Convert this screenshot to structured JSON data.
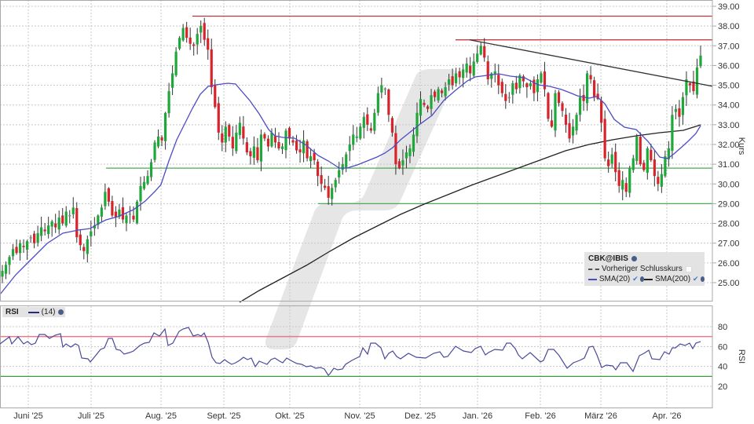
{
  "chart_data": {
    "type": "candlestick",
    "title": "CBK@IBIS",
    "instrument": "CBK@IBIS",
    "ylabel": "Kurs",
    "ylim": [
      24.3,
      39.3
    ],
    "y_ticks": [
      "39.00",
      "38.00",
      "37.00",
      "36.00",
      "35.00",
      "34.00",
      "33.00",
      "32.00",
      "31.00",
      "30.00",
      "29.00",
      "28.00",
      "27.00",
      "26.00",
      "25.00"
    ],
    "x_ticks": [
      "Juni '25",
      "Juli '25",
      "Aug. '25",
      "Sept. '25",
      "Okt. '25",
      "Nov. '25",
      "Dez. '25",
      "Jan. '26",
      "Feb. '26",
      "März '26",
      "Apr. '26"
    ],
    "x_tick_pos": [
      36,
      116,
      205,
      285,
      369,
      458,
      535,
      608,
      688,
      765,
      849
    ],
    "grid": true,
    "legend": {
      "title": "CBK@IBIS",
      "items": [
        {
          "label": "Vorheriger Schlusskurs",
          "style": "dashed",
          "color": "#555555"
        },
        {
          "label": "SMA(20)",
          "style": "solid",
          "color": "#4c4cc4"
        },
        {
          "label": "SMA(200)",
          "style": "solid",
          "color": "#222222"
        }
      ],
      "position": "lower-right"
    },
    "horizontal_lines": [
      {
        "value": 38.5,
        "x_start": 245,
        "color": "#c0262d"
      },
      {
        "value": 37.3,
        "x_start": 580,
        "color": "#c0262d"
      },
      {
        "value": 30.8,
        "x_start": 135,
        "color": "#4daa57"
      },
      {
        "value": 29.0,
        "x_start": 405,
        "color": "#4daa57"
      }
    ],
    "trendline": {
      "x1": 598,
      "y1v": 37.3,
      "x2": 907,
      "y2v": 34.95,
      "color": "#333333"
    },
    "closes": [
      25.6,
      25.9,
      26.3,
      26.7,
      26.5,
      27.0,
      26.8,
      27.1,
      27.3,
      27.0,
      27.5,
      27.8,
      27.6,
      27.9,
      28.1,
      27.8,
      28.3,
      28.0,
      28.6,
      28.4,
      28.8,
      27.3,
      26.9,
      26.6,
      27.2,
      27.6,
      27.9,
      28.4,
      28.8,
      29.6,
      29.1,
      28.4,
      28.3,
      28.7,
      28.2,
      28.4,
      28.5,
      28.2,
      29.1,
      29.9,
      30.1,
      30.4,
      31.1,
      32.1,
      32.4,
      32.2,
      33.6,
      34.7,
      35.6,
      36.7,
      37.4,
      37.9,
      37.4,
      37.1,
      37.0,
      37.6,
      38.0,
      37.3,
      36.8,
      34.9,
      33.9,
      32.6,
      32.1,
      32.9,
      32.4,
      31.8,
      32.6,
      33.1,
      32.3,
      31.6,
      31.4,
      31.9,
      31.2,
      32.5,
      32.3,
      31.9,
      32.6,
      32.1,
      31.8,
      31.9,
      32.7,
      32.3,
      32.1,
      31.7,
      31.6,
      32.2,
      31.3,
      31.4,
      31.2,
      30.4,
      30.0,
      29.8,
      29.3,
      29.8,
      30.2,
      30.7,
      31.0,
      31.5,
      32.0,
      32.5,
      32.4,
      32.9,
      33.4,
      33.0,
      32.7,
      33.6,
      34.6,
      35.0,
      34.8,
      33.5,
      32.6,
      31.0,
      30.8,
      31.2,
      31.6,
      31.8,
      32.5,
      33.6,
      34.3,
      34.0,
      33.8,
      34.5,
      34.4,
      34.8,
      34.6,
      34.9,
      35.3,
      35.0,
      35.6,
      35.4,
      35.8,
      36.1,
      35.6,
      36.2,
      36.6,
      37.0,
      36.4,
      35.3,
      35.6,
      35.7,
      35.0,
      34.6,
      34.2,
      34.4,
      35.1,
      34.8,
      35.5,
      35.2,
      34.9,
      35.1,
      34.6,
      35.3,
      35.6,
      34.8,
      33.3,
      32.9,
      34.6,
      34.1,
      33.7,
      33.0,
      32.3,
      32.9,
      33.5,
      34.4,
      34.2,
      35.6,
      35.3,
      34.4,
      34.3,
      33.1,
      31.3,
      30.9,
      31.5,
      30.6,
      29.9,
      30.2,
      29.6,
      30.8,
      31.3,
      32.4,
      31.0,
      30.7,
      31.8,
      31.2,
      30.4,
      30.0,
      30.5,
      31.4,
      31.8,
      33.5,
      33.8,
      33.4,
      34.4,
      35.3,
      35.0,
      34.7,
      35.9,
      36.5
    ],
    "sma20": [
      [
        0,
        375
      ],
      [
        20,
        350
      ],
      [
        40,
        330
      ],
      [
        60,
        310
      ],
      [
        80,
        297
      ],
      [
        100,
        293
      ],
      [
        115,
        291
      ],
      [
        125,
        285
      ],
      [
        135,
        280
      ],
      [
        150,
        276
      ],
      [
        170,
        267
      ],
      [
        185,
        256
      ],
      [
        197,
        244
      ],
      [
        205,
        235
      ],
      [
        215,
        205
      ],
      [
        225,
        178
      ],
      [
        235,
        158
      ],
      [
        245,
        138
      ],
      [
        255,
        120
      ],
      [
        265,
        110
      ],
      [
        275,
        108
      ],
      [
        290,
        106
      ],
      [
        300,
        107
      ],
      [
        305,
        113
      ],
      [
        318,
        128
      ],
      [
        330,
        145
      ],
      [
        342,
        165
      ],
      [
        350,
        173
      ],
      [
        360,
        175
      ],
      [
        375,
        176
      ],
      [
        390,
        185
      ],
      [
        405,
        198
      ],
      [
        418,
        205
      ],
      [
        432,
        214
      ],
      [
        442,
        214
      ],
      [
        455,
        210
      ],
      [
        465,
        206
      ],
      [
        480,
        200
      ],
      [
        490,
        195
      ],
      [
        500,
        188
      ],
      [
        510,
        178
      ],
      [
        520,
        170
      ],
      [
        535,
        158
      ],
      [
        550,
        147
      ],
      [
        565,
        128
      ],
      [
        580,
        115
      ],
      [
        595,
        103
      ],
      [
        605,
        98
      ],
      [
        620,
        96
      ],
      [
        635,
        94
      ],
      [
        650,
        97
      ],
      [
        668,
        99
      ],
      [
        685,
        108
      ],
      [
        700,
        110
      ],
      [
        715,
        114
      ],
      [
        728,
        119
      ],
      [
        735,
        122
      ],
      [
        750,
        125
      ],
      [
        760,
        123
      ],
      [
        770,
        132
      ],
      [
        782,
        152
      ],
      [
        795,
        162
      ],
      [
        810,
        165
      ],
      [
        825,
        180
      ],
      [
        840,
        200
      ],
      [
        850,
        202
      ],
      [
        858,
        196
      ],
      [
        866,
        189
      ],
      [
        876,
        180
      ],
      [
        886,
        170
      ],
      [
        892,
        160
      ]
    ],
    "sma200": [
      [
        305,
        385
      ],
      [
        330,
        370
      ],
      [
        360,
        354
      ],
      [
        390,
        338
      ],
      [
        420,
        320
      ],
      [
        450,
        303
      ],
      [
        480,
        288
      ],
      [
        510,
        273
      ],
      [
        540,
        260
      ],
      [
        570,
        248
      ],
      [
        600,
        236
      ],
      [
        630,
        225
      ],
      [
        660,
        214
      ],
      [
        690,
        203
      ],
      [
        720,
        192
      ],
      [
        750,
        184
      ],
      [
        780,
        178
      ],
      [
        810,
        173
      ],
      [
        840,
        169
      ],
      [
        870,
        166
      ],
      [
        892,
        159
      ]
    ],
    "rsi": {
      "period": 14,
      "ylim": [
        0,
        100
      ],
      "y_ticks": [
        "80",
        "60",
        "40",
        "20"
      ],
      "ylabel": "RSI",
      "overbought": 70,
      "oversold": 30,
      "points": [
        [
          0,
          438
        ],
        [
          12,
          429
        ],
        [
          15,
          438
        ],
        [
          23,
          429
        ],
        [
          30,
          438
        ],
        [
          35,
          435
        ],
        [
          40,
          439
        ],
        [
          45,
          437
        ],
        [
          50,
          426
        ],
        [
          57,
          426
        ],
        [
          63,
          431
        ],
        [
          70,
          427
        ],
        [
          77,
          425
        ],
        [
          80,
          442
        ],
        [
          84,
          438
        ],
        [
          90,
          442
        ],
        [
          96,
          438
        ],
        [
          100,
          440
        ],
        [
          104,
          456
        ],
        [
          112,
          457
        ],
        [
          115,
          461
        ],
        [
          120,
          455
        ],
        [
          128,
          445
        ],
        [
          133,
          443
        ],
        [
          138,
          431
        ],
        [
          143,
          431
        ],
        [
          148,
          445
        ],
        [
          153,
          446
        ],
        [
          158,
          451
        ],
        [
          165,
          449
        ],
        [
          170,
          447
        ],
        [
          178,
          440
        ],
        [
          184,
          437
        ],
        [
          190,
          436
        ],
        [
          196,
          424
        ],
        [
          203,
          428
        ],
        [
          210,
          419
        ],
        [
          214,
          440
        ],
        [
          220,
          437
        ],
        [
          228,
          422
        ],
        [
          233,
          419
        ],
        [
          240,
          417
        ],
        [
          246,
          428
        ],
        [
          252,
          426
        ],
        [
          256,
          428
        ],
        [
          260,
          424
        ],
        [
          265,
          436
        ],
        [
          270,
          455
        ],
        [
          275,
          462
        ],
        [
          280,
          463
        ],
        [
          286,
          458
        ],
        [
          290,
          461
        ],
        [
          295,
          464
        ],
        [
          300,
          462
        ],
        [
          305,
          459
        ],
        [
          310,
          455
        ],
        [
          315,
          458
        ],
        [
          320,
          456
        ],
        [
          325,
          467
        ],
        [
          330,
          460
        ],
        [
          335,
          462
        ],
        [
          340,
          464
        ],
        [
          345,
          458
        ],
        [
          350,
          456
        ],
        [
          356,
          460
        ],
        [
          360,
          462
        ],
        [
          365,
          456
        ],
        [
          372,
          460
        ],
        [
          378,
          463
        ],
        [
          384,
          464
        ],
        [
          390,
          467
        ],
        [
          396,
          466
        ],
        [
          402,
          469
        ],
        [
          408,
          468
        ],
        [
          413,
          470
        ],
        [
          418,
          478
        ],
        [
          420,
          476
        ],
        [
          425,
          469
        ],
        [
          430,
          471
        ],
        [
          436,
          470
        ],
        [
          440,
          464
        ],
        [
          448,
          459
        ],
        [
          458,
          454
        ],
        [
          462,
          443
        ],
        [
          468,
          451
        ],
        [
          472,
          437
        ],
        [
          478,
          437
        ],
        [
          485,
          443
        ],
        [
          490,
          457
        ],
        [
          495,
          450
        ],
        [
          500,
          447
        ],
        [
          505,
          454
        ],
        [
          510,
          457
        ],
        [
          520,
          450
        ],
        [
          530,
          455
        ],
        [
          542,
          456
        ],
        [
          552,
          450
        ],
        [
          560,
          448
        ],
        [
          565,
          455
        ],
        [
          570,
          454
        ],
        [
          580,
          441
        ],
        [
          590,
          447
        ],
        [
          600,
          449
        ],
        [
          605,
          444
        ],
        [
          612,
          441
        ],
        [
          618,
          452
        ],
        [
          622,
          449
        ],
        [
          630,
          445
        ],
        [
          640,
          446
        ],
        [
          645,
          437
        ],
        [
          650,
          437
        ],
        [
          656,
          444
        ],
        [
          660,
          452
        ],
        [
          665,
          457
        ],
        [
          675,
          449
        ],
        [
          688,
          461
        ],
        [
          692,
          459
        ],
        [
          698,
          445
        ],
        [
          705,
          445
        ],
        [
          712,
          453
        ],
        [
          722,
          469
        ],
        [
          730,
          462
        ],
        [
          738,
          459
        ],
        [
          744,
          456
        ],
        [
          750,
          442
        ],
        [
          755,
          441
        ],
        [
          760,
          452
        ],
        [
          766,
          468
        ],
        [
          772,
          465
        ],
        [
          780,
          466
        ],
        [
          784,
          471
        ],
        [
          790,
          462
        ],
        [
          798,
          462
        ],
        [
          806,
          473
        ],
        [
          814,
          453
        ],
        [
          820,
          450
        ],
        [
          826,
          446
        ],
        [
          830,
          457
        ],
        [
          840,
          458
        ],
        [
          846,
          448
        ],
        [
          852,
          451
        ],
        [
          856,
          443
        ],
        [
          860,
          443
        ],
        [
          866,
          438
        ],
        [
          872,
          440
        ],
        [
          878,
          437
        ],
        [
          882,
          444
        ],
        [
          886,
          437
        ],
        [
          892,
          435
        ]
      ]
    }
  },
  "legend": {
    "title": "CBK@IBIS",
    "prev_close": "Vorheriger Schlusskurs",
    "sma20": "SMA(20)",
    "sma200": "SMA(200)"
  },
  "rsi_legend": {
    "title": "RSI",
    "period": "(14)"
  },
  "colors": {
    "up": "#1ea83a",
    "down": "#d8232a",
    "neutral": "#888888",
    "sma20": "#4c4cc4",
    "sma200": "#222222",
    "rsi_line": "#4a4a9a",
    "resistance": "#c0262d",
    "support": "#4daa57",
    "rsi_overbought": "#e07c8c",
    "rsi_oversold": "#3c9a3c",
    "grid": "#c8c8c8",
    "watermark": "#e6e6e6"
  }
}
